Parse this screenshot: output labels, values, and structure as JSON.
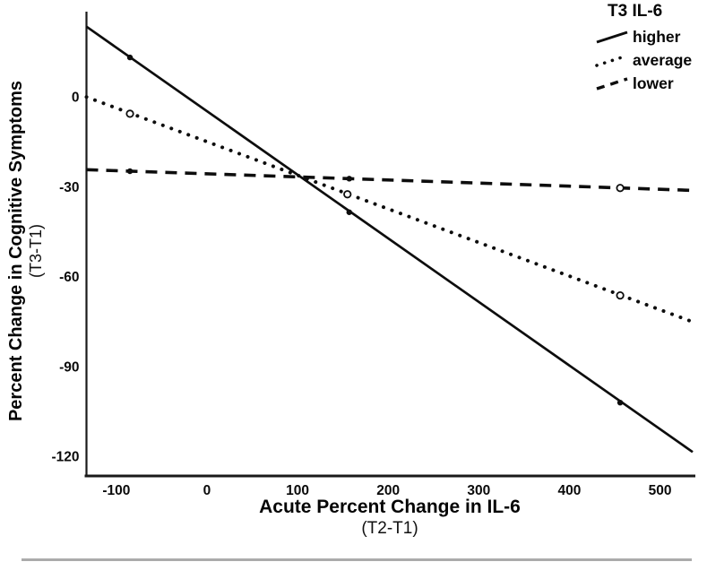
{
  "chart_data": {
    "type": "line",
    "title": "",
    "xlabel": "Acute Percent Change in IL-6",
    "xlabel_sub": "(T2-T1)",
    "ylabel": "Percent Change in Cognitive Symptoms",
    "ylabel_sub": "(T3-T1)",
    "xlim": [
      -133,
      537
    ],
    "ylim": [
      -126.6,
      28.5
    ],
    "grid": false,
    "background_color": "#ffffff",
    "line_color": "#0d0d0d",
    "x_ticks": [
      {
        "value": -100,
        "label": "-100"
      },
      {
        "value": 0,
        "label": "0"
      },
      {
        "value": 100,
        "label": "100"
      },
      {
        "value": 200,
        "label": "200"
      },
      {
        "value": 300,
        "label": "300"
      },
      {
        "value": 400,
        "label": "400"
      },
      {
        "value": 500,
        "label": "500"
      }
    ],
    "y_ticks": [
      {
        "value": 0,
        "label": "0"
      },
      {
        "value": -30,
        "label": "-30"
      },
      {
        "value": -60,
        "label": "-60"
      },
      {
        "value": -90,
        "label": "-90"
      },
      {
        "value": -120,
        "label": "-120"
      }
    ],
    "legend": {
      "title": "T3 IL-6",
      "position": "top-right",
      "entries": [
        {
          "label": "higher",
          "line_style": "solid"
        },
        {
          "label": "average",
          "line_style": "dotted"
        },
        {
          "label": "lower",
          "line_style": "dashed"
        }
      ]
    },
    "series": [
      {
        "name": "higher",
        "style": "solid",
        "points": [
          [
            -133,
            23.5
          ],
          [
            536,
            -118.6
          ]
        ],
        "markers": [
          {
            "x": -85,
            "y": 13.2,
            "type": "filled"
          },
          {
            "x": 157,
            "y": -38.5,
            "type": "filled"
          },
          {
            "x": 456,
            "y": -102.1,
            "type": "filled"
          }
        ]
      },
      {
        "name": "average",
        "style": "dotted",
        "points": [
          [
            -133,
            0.0
          ],
          [
            535,
            -75.0
          ]
        ],
        "markers": [
          {
            "x": -85,
            "y": -5.6,
            "type": "open"
          },
          {
            "x": 155,
            "y": -32.5,
            "type": "open"
          },
          {
            "x": 456,
            "y": -66.3,
            "type": "open"
          }
        ]
      },
      {
        "name": "lower",
        "style": "dashed",
        "points": [
          [
            -133,
            -24.3
          ],
          [
            536,
            -31.2
          ]
        ],
        "markers": [
          {
            "x": -85,
            "y": -24.8,
            "type": "filled"
          },
          {
            "x": 157,
            "y": -27.3,
            "type": "filled"
          },
          {
            "x": 456,
            "y": -30.4,
            "type": "open"
          }
        ]
      }
    ]
  }
}
